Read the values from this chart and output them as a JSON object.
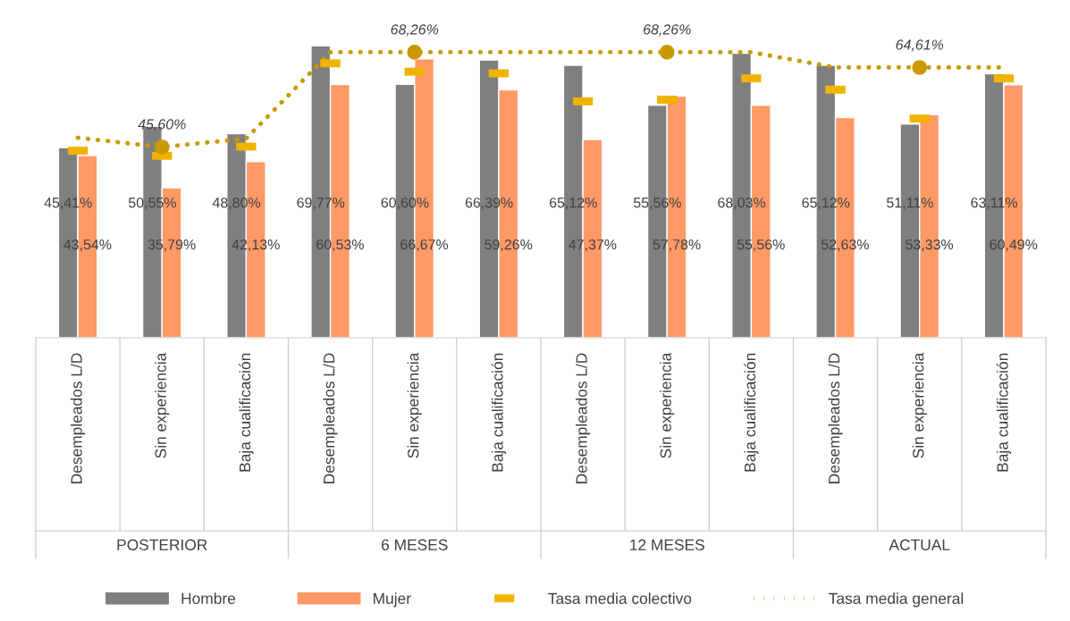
{
  "chart_data": {
    "type": "bar",
    "categories": [
      "Desempleados L/D",
      "Sin experiencia",
      "Baja cualificación",
      "Desempleados L/D",
      "Sin experiencia",
      "Baja cualificación",
      "Desempleados L/D",
      "Sin experiencia",
      "Baja cualificación",
      "Desempleados L/D",
      "Sin experiencia",
      "Baja cualificación"
    ],
    "annotations": [
      "POSTERIOR",
      "6 MESES",
      "12 MESES",
      "ACTUAL"
    ],
    "tick_labels": "x",
    "legend": "bottom",
    "grid": false,
    "series": [
      {
        "name": "Hombre",
        "color": "#7f7f7f",
        "values": [
          45.41,
          50.55,
          48.8,
          69.77,
          60.6,
          66.39,
          65.12,
          55.56,
          68.03,
          65.12,
          51.11,
          63.11
        ],
        "value_labels": [
          "45,41%",
          "50,55%",
          "48,80%",
          "69,77%",
          "60,60%",
          "66,39%",
          "65,12%",
          "55,56%",
          "68,03%",
          "65,12%",
          "51,11%",
          "63,11%"
        ]
      },
      {
        "name": "Mujer",
        "color": "#ff9966",
        "values": [
          43.54,
          35.79,
          42.13,
          60.53,
          66.67,
          59.26,
          47.37,
          57.78,
          55.56,
          52.63,
          53.33,
          60.49
        ],
        "value_labels": [
          "43,54%",
          "35,79%",
          "42,13%",
          "60,53%",
          "66,67%",
          "59,26%",
          "47,37%",
          "57,78%",
          "55,56%",
          "52,63%",
          "53,33%",
          "60,49%"
        ]
      },
      {
        "name": "Tasa media colectivo",
        "type": "scatter",
        "color": "#f0b400",
        "values": [
          44.7,
          43.5,
          45.7,
          65.6,
          63.6,
          63.2,
          56.5,
          56.9,
          62.0,
          59.3,
          52.4,
          62.0
        ]
      },
      {
        "name": "Tasa media general",
        "type": "line",
        "line_style": "dotted",
        "color": "#c99a00",
        "values": [
          47.8,
          45.6,
          47.6,
          68.26,
          68.26,
          68.26,
          68.26,
          68.26,
          68.26,
          64.61,
          64.61,
          64.61
        ],
        "value_labels": [
          null,
          "45,60%",
          null,
          null,
          "68,26%",
          null,
          null,
          "68,26%",
          null,
          null,
          "64,61%",
          null
        ]
      }
    ]
  }
}
